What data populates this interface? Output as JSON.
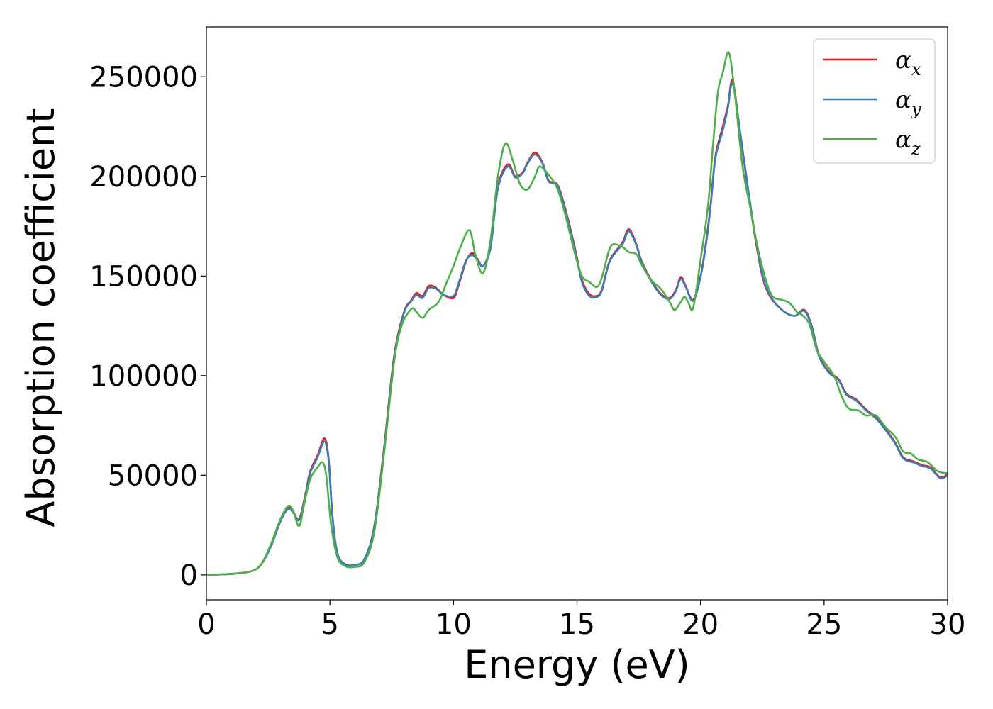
{
  "chart_data": {
    "type": "line",
    "xlabel": "Energy (eV)",
    "ylabel": "Absorption coefficient",
    "xlim": [
      0,
      30
    ],
    "ylim": [
      -12500,
      275000
    ],
    "xticks": [
      0,
      5,
      10,
      15,
      20,
      25,
      30
    ],
    "yticks": [
      0,
      50000,
      100000,
      150000,
      200000,
      250000
    ],
    "grid": false,
    "legend_position": "top-right",
    "series": [
      {
        "name": "α",
        "sub": "x",
        "color": "#e41a1c",
        "points": [
          [
            0,
            0
          ],
          [
            1,
            500
          ],
          [
            1.8,
            1800
          ],
          [
            2.2,
            5000
          ],
          [
            2.6,
            14000
          ],
          [
            3.0,
            27000
          ],
          [
            3.3,
            33500
          ],
          [
            3.5,
            32000
          ],
          [
            3.75,
            28000
          ],
          [
            4.0,
            40000
          ],
          [
            4.2,
            52000
          ],
          [
            4.5,
            60000
          ],
          [
            4.78,
            68500
          ],
          [
            4.95,
            58000
          ],
          [
            5.1,
            30000
          ],
          [
            5.3,
            11000
          ],
          [
            5.6,
            5500
          ],
          [
            6.0,
            5000
          ],
          [
            6.4,
            8000
          ],
          [
            6.8,
            25000
          ],
          [
            7.2,
            65000
          ],
          [
            7.6,
            110000
          ],
          [
            8.0,
            132000
          ],
          [
            8.3,
            138000
          ],
          [
            8.5,
            141500
          ],
          [
            8.75,
            140000
          ],
          [
            9.0,
            145000
          ],
          [
            9.3,
            144000
          ],
          [
            9.6,
            140500
          ],
          [
            10.0,
            139000
          ],
          [
            10.2,
            145000
          ],
          [
            10.5,
            157000
          ],
          [
            10.75,
            161500
          ],
          [
            11.0,
            158000
          ],
          [
            11.2,
            155000
          ],
          [
            11.5,
            165000
          ],
          [
            11.8,
            195000
          ],
          [
            12.2,
            206000
          ],
          [
            12.5,
            200000
          ],
          [
            12.8,
            202000
          ],
          [
            13.0,
            207000
          ],
          [
            13.3,
            212000
          ],
          [
            13.6,
            207000
          ],
          [
            13.85,
            198000
          ],
          [
            14.2,
            196000
          ],
          [
            14.5,
            185000
          ],
          [
            14.9,
            165000
          ],
          [
            15.2,
            148000
          ],
          [
            15.5,
            141000
          ],
          [
            15.8,
            140000
          ],
          [
            16.0,
            143000
          ],
          [
            16.3,
            157000
          ],
          [
            16.6,
            163000
          ],
          [
            16.85,
            167000
          ],
          [
            17.1,
            173500
          ],
          [
            17.4,
            166000
          ],
          [
            17.6,
            158000
          ],
          [
            18.0,
            148000
          ],
          [
            18.4,
            141000
          ],
          [
            18.75,
            139000
          ],
          [
            19.0,
            143000
          ],
          [
            19.2,
            149500
          ],
          [
            19.4,
            145000
          ],
          [
            19.7,
            138000
          ],
          [
            20.0,
            150000
          ],
          [
            20.2,
            165000
          ],
          [
            20.4,
            185000
          ],
          [
            20.6,
            210000
          ],
          [
            20.9,
            225000
          ],
          [
            21.1,
            235000
          ],
          [
            21.3,
            248000
          ],
          [
            21.6,
            222000
          ],
          [
            21.9,
            195000
          ],
          [
            22.2,
            170000
          ],
          [
            22.5,
            150000
          ],
          [
            22.8,
            140000
          ],
          [
            23.3,
            133000
          ],
          [
            23.8,
            130000
          ],
          [
            24.2,
            133000
          ],
          [
            24.5,
            125000
          ],
          [
            24.8,
            110000
          ],
          [
            25.2,
            102000
          ],
          [
            25.6,
            98000
          ],
          [
            25.9,
            91000
          ],
          [
            26.3,
            88000
          ],
          [
            26.7,
            83000
          ],
          [
            27.1,
            79000
          ],
          [
            27.5,
            73000
          ],
          [
            27.9,
            66000
          ],
          [
            28.2,
            59000
          ],
          [
            28.6,
            57000
          ],
          [
            29.0,
            55000
          ],
          [
            29.3,
            54000
          ],
          [
            29.7,
            49000
          ],
          [
            30.0,
            50500
          ]
        ]
      },
      {
        "name": "α",
        "sub": "y",
        "color": "#377eb8",
        "points": [
          [
            0,
            0
          ],
          [
            1,
            500
          ],
          [
            1.8,
            1800
          ],
          [
            2.2,
            5000
          ],
          [
            2.6,
            14000
          ],
          [
            3.0,
            27000
          ],
          [
            3.3,
            33000
          ],
          [
            3.5,
            31500
          ],
          [
            3.75,
            27500
          ],
          [
            4.0,
            39000
          ],
          [
            4.2,
            51000
          ],
          [
            4.5,
            59000
          ],
          [
            4.78,
            67000
          ],
          [
            4.95,
            57000
          ],
          [
            5.1,
            29500
          ],
          [
            5.3,
            11000
          ],
          [
            5.6,
            5500
          ],
          [
            6.0,
            5000
          ],
          [
            6.4,
            8000
          ],
          [
            6.8,
            24500
          ],
          [
            7.2,
            64000
          ],
          [
            7.6,
            109000
          ],
          [
            8.0,
            131500
          ],
          [
            8.3,
            137500
          ],
          [
            8.5,
            140500
          ],
          [
            8.75,
            139000
          ],
          [
            9.0,
            144000
          ],
          [
            9.3,
            143500
          ],
          [
            9.6,
            140500
          ],
          [
            10.0,
            140000
          ],
          [
            10.2,
            146000
          ],
          [
            10.5,
            157500
          ],
          [
            10.75,
            160500
          ],
          [
            11.0,
            157500
          ],
          [
            11.2,
            155000
          ],
          [
            11.5,
            164000
          ],
          [
            11.8,
            194000
          ],
          [
            12.2,
            205000
          ],
          [
            12.5,
            199500
          ],
          [
            12.8,
            201500
          ],
          [
            13.0,
            206500
          ],
          [
            13.3,
            211000
          ],
          [
            13.6,
            206500
          ],
          [
            13.85,
            197500
          ],
          [
            14.2,
            195500
          ],
          [
            14.5,
            184000
          ],
          [
            14.9,
            164000
          ],
          [
            15.2,
            147000
          ],
          [
            15.5,
            140000
          ],
          [
            15.8,
            139500
          ],
          [
            16.0,
            142500
          ],
          [
            16.3,
            156500
          ],
          [
            16.6,
            162500
          ],
          [
            16.85,
            166000
          ],
          [
            17.1,
            172500
          ],
          [
            17.4,
            165500
          ],
          [
            17.6,
            157500
          ],
          [
            18.0,
            147500
          ],
          [
            18.4,
            140500
          ],
          [
            18.75,
            138500
          ],
          [
            19.0,
            142500
          ],
          [
            19.2,
            148500
          ],
          [
            19.4,
            144500
          ],
          [
            19.7,
            137500
          ],
          [
            20.0,
            149500
          ],
          [
            20.2,
            164000
          ],
          [
            20.4,
            184000
          ],
          [
            20.6,
            209000
          ],
          [
            20.9,
            223000
          ],
          [
            21.1,
            234000
          ],
          [
            21.3,
            246500
          ],
          [
            21.6,
            222500
          ],
          [
            21.9,
            196000
          ],
          [
            22.2,
            171000
          ],
          [
            22.5,
            151000
          ],
          [
            22.8,
            140500
          ],
          [
            23.3,
            133000
          ],
          [
            23.8,
            130000
          ],
          [
            24.2,
            132500
          ],
          [
            24.5,
            124500
          ],
          [
            24.8,
            109500
          ],
          [
            25.2,
            101500
          ],
          [
            25.6,
            97500
          ],
          [
            25.9,
            90500
          ],
          [
            26.3,
            87500
          ],
          [
            26.7,
            82500
          ],
          [
            27.1,
            78500
          ],
          [
            27.5,
            72500
          ],
          [
            27.9,
            65500
          ],
          [
            28.2,
            58500
          ],
          [
            28.6,
            56500
          ],
          [
            29.0,
            54500
          ],
          [
            29.3,
            53500
          ],
          [
            29.7,
            48500
          ],
          [
            30.0,
            50000
          ]
        ]
      },
      {
        "name": "α",
        "sub": "z",
        "color": "#4daf4a",
        "points": [
          [
            0,
            0
          ],
          [
            1,
            500
          ],
          [
            1.8,
            1800
          ],
          [
            2.2,
            5000
          ],
          [
            2.6,
            15000
          ],
          [
            3.0,
            28000
          ],
          [
            3.3,
            34500
          ],
          [
            3.5,
            32500
          ],
          [
            3.75,
            24500
          ],
          [
            3.95,
            35000
          ],
          [
            4.2,
            48000
          ],
          [
            4.5,
            54000
          ],
          [
            4.7,
            56500
          ],
          [
            4.85,
            50000
          ],
          [
            5.05,
            25000
          ],
          [
            5.3,
            9000
          ],
          [
            5.6,
            4500
          ],
          [
            6.0,
            4000
          ],
          [
            6.4,
            6500
          ],
          [
            6.8,
            22000
          ],
          [
            7.2,
            62000
          ],
          [
            7.6,
            107000
          ],
          [
            7.9,
            125000
          ],
          [
            8.3,
            133500
          ],
          [
            8.5,
            132000
          ],
          [
            8.75,
            129000
          ],
          [
            9.0,
            133000
          ],
          [
            9.4,
            137000
          ],
          [
            9.7,
            146000
          ],
          [
            10.0,
            155000
          ],
          [
            10.3,
            165000
          ],
          [
            10.65,
            173000
          ],
          [
            10.9,
            160000
          ],
          [
            11.2,
            151500
          ],
          [
            11.5,
            168000
          ],
          [
            11.8,
            200000
          ],
          [
            12.1,
            216500
          ],
          [
            12.4,
            208000
          ],
          [
            12.7,
            196000
          ],
          [
            13.0,
            193500
          ],
          [
            13.3,
            200000
          ],
          [
            13.5,
            205000
          ],
          [
            13.9,
            200000
          ],
          [
            14.2,
            194000
          ],
          [
            14.5,
            182000
          ],
          [
            14.9,
            162000
          ],
          [
            15.2,
            150000
          ],
          [
            15.5,
            147000
          ],
          [
            15.8,
            144500
          ],
          [
            16.0,
            149000
          ],
          [
            16.3,
            163000
          ],
          [
            16.5,
            166000
          ],
          [
            16.85,
            164500
          ],
          [
            17.1,
            162000
          ],
          [
            17.4,
            161000
          ],
          [
            17.6,
            156000
          ],
          [
            18.0,
            148000
          ],
          [
            18.4,
            143500
          ],
          [
            18.75,
            137000
          ],
          [
            18.95,
            133000
          ],
          [
            19.2,
            137000
          ],
          [
            19.35,
            139500
          ],
          [
            19.5,
            137000
          ],
          [
            19.7,
            134000
          ],
          [
            20.0,
            158000
          ],
          [
            20.3,
            185000
          ],
          [
            20.5,
            215000
          ],
          [
            20.7,
            242000
          ],
          [
            20.9,
            252000
          ],
          [
            21.15,
            262000
          ],
          [
            21.4,
            240000
          ],
          [
            21.7,
            205000
          ],
          [
            22.0,
            185000
          ],
          [
            22.3,
            165000
          ],
          [
            22.6,
            150000
          ],
          [
            22.9,
            140000
          ],
          [
            23.3,
            138000
          ],
          [
            23.6,
            136500
          ],
          [
            23.9,
            132000
          ],
          [
            24.1,
            130500
          ],
          [
            24.4,
            126000
          ],
          [
            24.7,
            113000
          ],
          [
            25.0,
            107000
          ],
          [
            25.4,
            100000
          ],
          [
            25.7,
            90000
          ],
          [
            26.0,
            83500
          ],
          [
            26.4,
            82500
          ],
          [
            26.7,
            80000
          ],
          [
            27.1,
            80000
          ],
          [
            27.5,
            74000
          ],
          [
            27.9,
            69000
          ],
          [
            28.2,
            62000
          ],
          [
            28.5,
            61000
          ],
          [
            28.8,
            58000
          ],
          [
            29.2,
            56500
          ],
          [
            29.6,
            52000
          ],
          [
            30.0,
            51000
          ]
        ]
      }
    ]
  }
}
